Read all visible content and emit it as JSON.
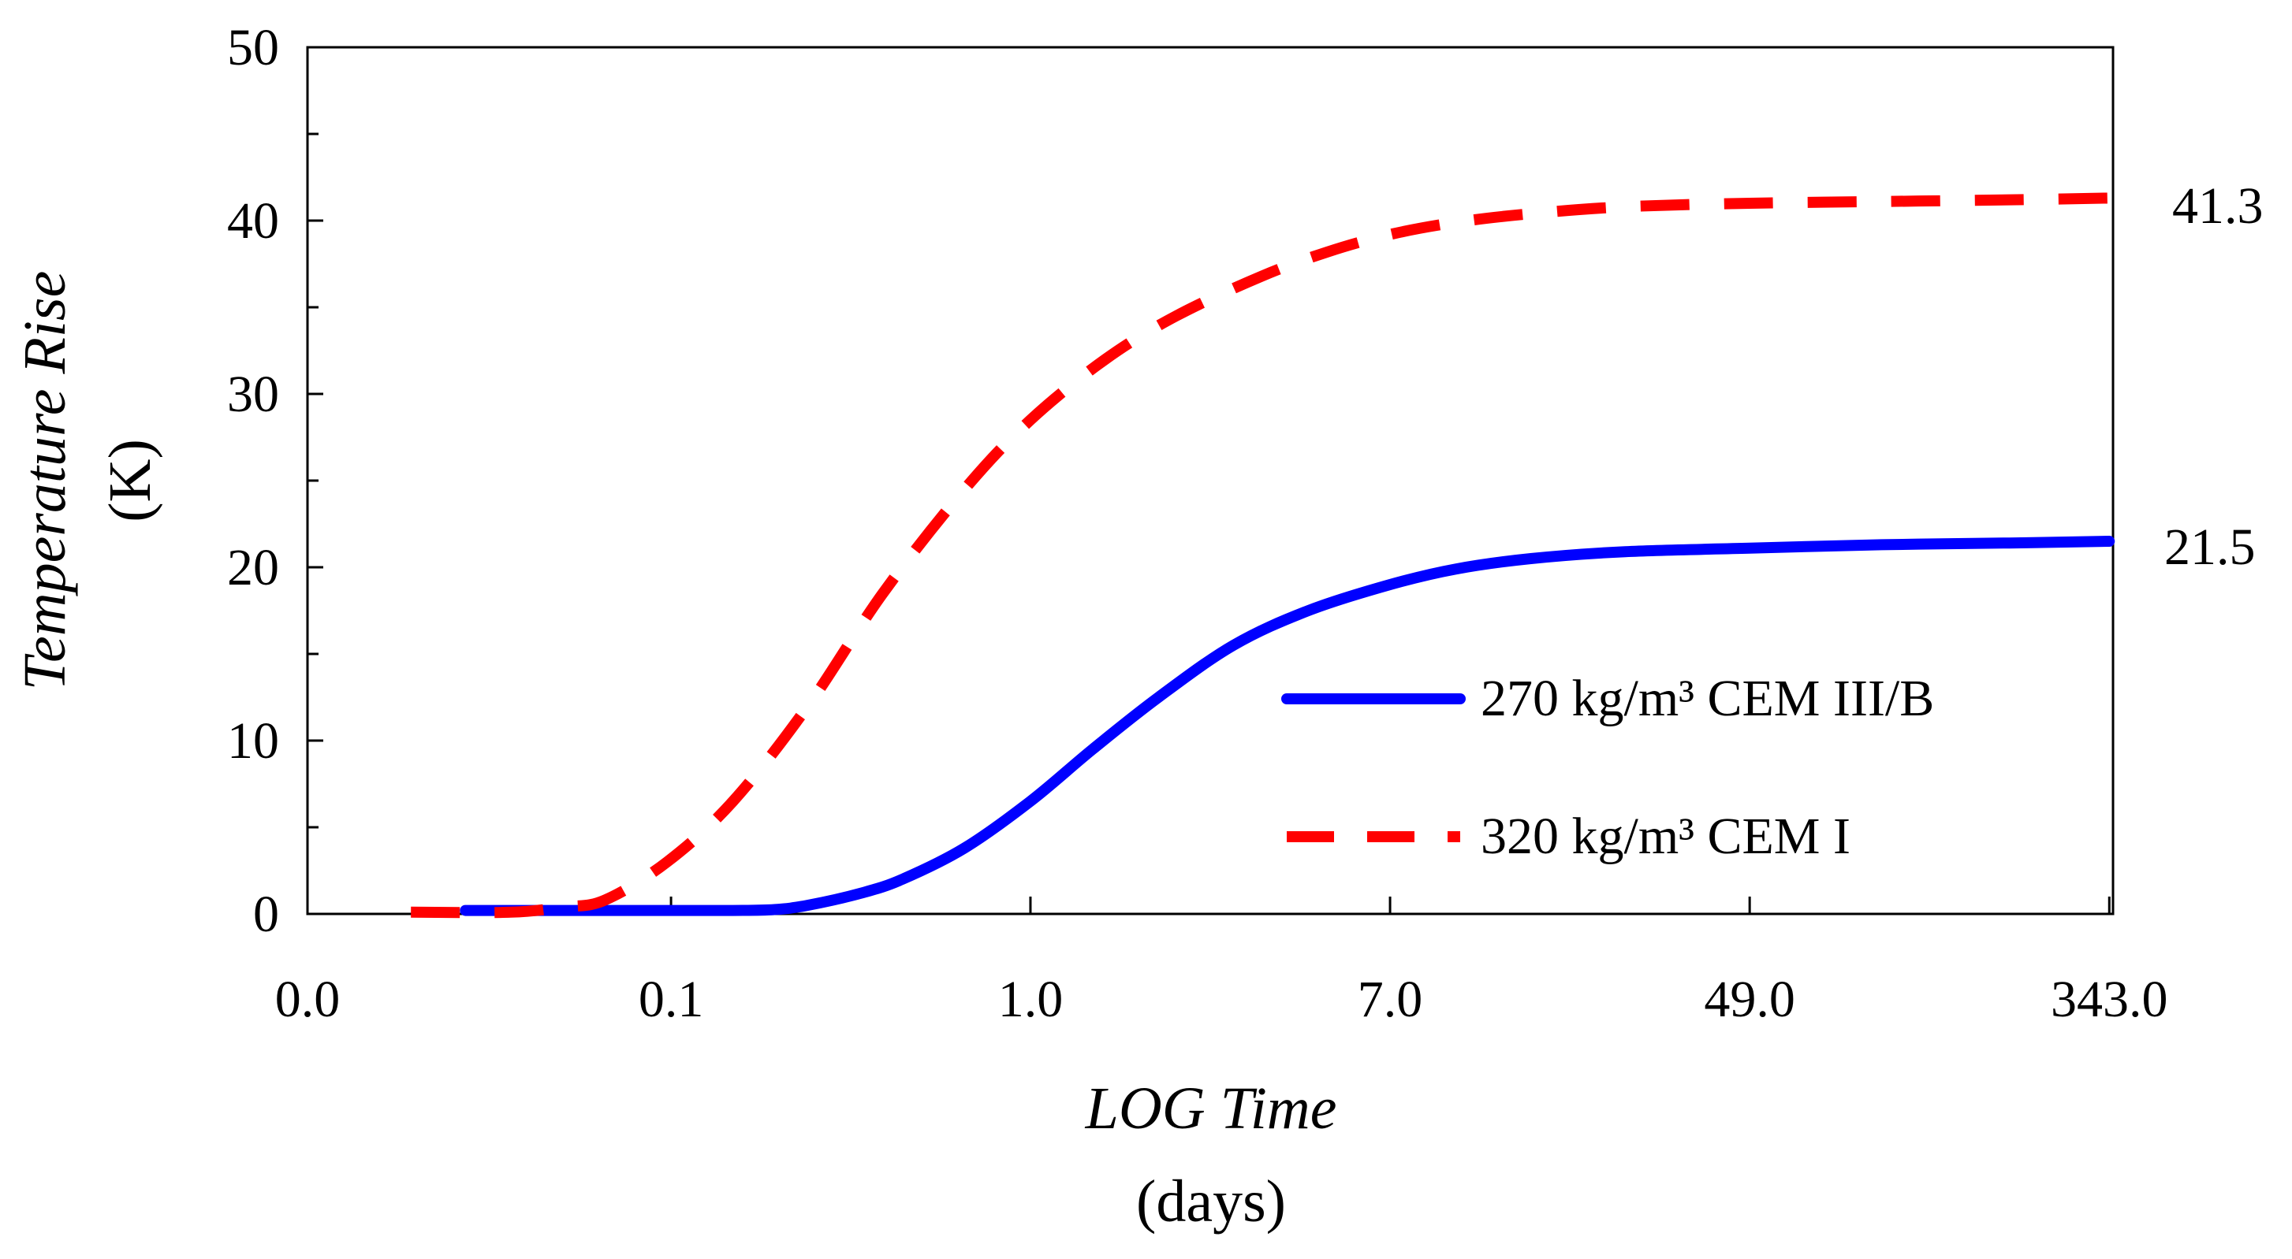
{
  "chart_data": {
    "type": "line",
    "x_scale": "log",
    "xlabel": "LOG Time",
    "xlabel_unit": "(days)",
    "ylabel": "Temperature Rise",
    "ylabel_unit": "(K)",
    "ylim": [
      0,
      50
    ],
    "yticks": [
      0,
      10,
      20,
      30,
      40,
      50
    ],
    "xticks": [
      {
        "value": 0.02,
        "label": "0.0"
      },
      {
        "value": 0.143,
        "label": "0.1"
      },
      {
        "value": 1.0,
        "label": "1.0"
      },
      {
        "value": 7.0,
        "label": "7.0"
      },
      {
        "value": 49.0,
        "label": "49.0"
      },
      {
        "value": 343.0,
        "label": "343.0"
      }
    ],
    "xlim": [
      0.02,
      350
    ],
    "series": [
      {
        "name": "270 kg/m³ CEM III/B",
        "style": "solid",
        "color": "#0000ff",
        "end_label": "21.5",
        "x": [
          0.047,
          0.07,
          0.1,
          0.14,
          0.2,
          0.25,
          0.3,
          0.4,
          0.5,
          0.7,
          1.0,
          1.4,
          2.0,
          3.0,
          4.5,
          7.0,
          10.0,
          15.0,
          25.0,
          49.0,
          100.0,
          200.0,
          343.0
        ],
        "y": [
          0.2,
          0.2,
          0.2,
          0.2,
          0.2,
          0.25,
          0.5,
          1.2,
          2.0,
          3.8,
          6.5,
          9.5,
          12.5,
          15.5,
          17.5,
          19.0,
          19.9,
          20.5,
          20.9,
          21.1,
          21.3,
          21.4,
          21.5
        ]
      },
      {
        "name": "320 kg/m³ CEM I",
        "style": "dashed",
        "color": "#ff0000",
        "end_label": "41.3",
        "x": [
          0.035,
          0.06,
          0.08,
          0.1,
          0.14,
          0.2,
          0.3,
          0.45,
          0.7,
          1.0,
          1.5,
          2.2,
          3.5,
          5.0,
          7.0,
          10.0,
          15.0,
          25.0,
          49.0,
          100.0,
          200.0,
          343.0
        ],
        "y": [
          0.1,
          0.1,
          0.4,
          0.8,
          3.0,
          6.5,
          12.0,
          18.5,
          24.5,
          28.5,
          32.0,
          34.5,
          36.8,
          38.2,
          39.2,
          39.9,
          40.4,
          40.8,
          41.0,
          41.1,
          41.2,
          41.3
        ]
      }
    ],
    "legend": {
      "position": "bottom-right"
    }
  }
}
